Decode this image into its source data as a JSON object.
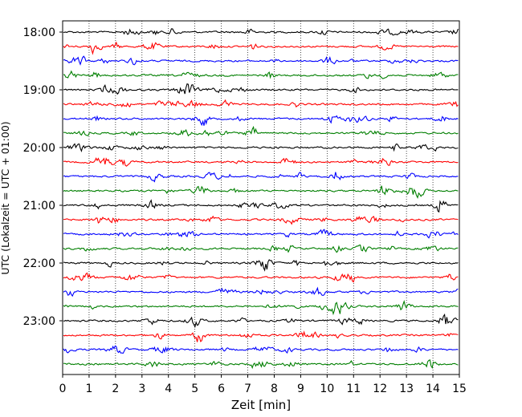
{
  "chart_data": {
    "type": "line",
    "title": "",
    "xlabel": "Zeit  [min]",
    "ylabel": "UTC (Lokalzeit = UTC + 01:00)",
    "xlim": [
      0,
      15
    ],
    "x_ticks": [
      0,
      1,
      2,
      3,
      4,
      5,
      6,
      7,
      8,
      9,
      10,
      11,
      12,
      13,
      14,
      15
    ],
    "x_tick_labels": [
      "0",
      "1",
      "2",
      "3",
      "4",
      "5",
      "6",
      "7",
      "8",
      "9",
      "10",
      "11",
      "12",
      "13",
      "14",
      "15"
    ],
    "y_tick_labels": [
      "18:00",
      "19:00",
      "20:00",
      "21:00",
      "22:00",
      "23:00"
    ],
    "y_tick_rows": [
      0,
      4,
      8,
      12,
      16,
      20
    ],
    "x_grid": "dotted vertical",
    "trace_rows": [
      {
        "start": "18:00",
        "color": "#000000"
      },
      {
        "start": "18:15",
        "color": "#ff0000"
      },
      {
        "start": "18:30",
        "color": "#0000ff"
      },
      {
        "start": "18:45",
        "color": "#007f00"
      },
      {
        "start": "19:00",
        "color": "#000000"
      },
      {
        "start": "19:15",
        "color": "#ff0000"
      },
      {
        "start": "19:30",
        "color": "#0000ff"
      },
      {
        "start": "19:45",
        "color": "#007f00"
      },
      {
        "start": "20:00",
        "color": "#000000"
      },
      {
        "start": "20:15",
        "color": "#ff0000"
      },
      {
        "start": "20:30",
        "color": "#0000ff"
      },
      {
        "start": "20:45",
        "color": "#007f00"
      },
      {
        "start": "21:00",
        "color": "#000000"
      },
      {
        "start": "21:15",
        "color": "#ff0000"
      },
      {
        "start": "21:30",
        "color": "#0000ff"
      },
      {
        "start": "21:45",
        "color": "#007f00"
      },
      {
        "start": "22:00",
        "color": "#000000"
      },
      {
        "start": "22:15",
        "color": "#ff0000"
      },
      {
        "start": "22:30",
        "color": "#0000ff"
      },
      {
        "start": "22:45",
        "color": "#007f00"
      },
      {
        "start": "23:00",
        "color": "#000000"
      },
      {
        "start": "23:15",
        "color": "#ff0000"
      },
      {
        "start": "23:30",
        "color": "#0000ff"
      },
      {
        "start": "23:45",
        "color": "#007f00"
      }
    ],
    "colors_cycle": [
      "#000000",
      "#ff0000",
      "#0000ff",
      "#007f00"
    ]
  }
}
